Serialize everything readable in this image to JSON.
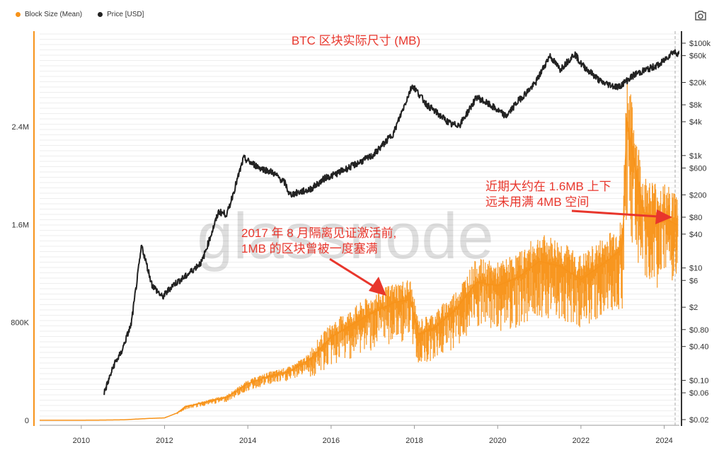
{
  "legend": [
    {
      "label": "Block Size (Mean)",
      "color": "#f7931a"
    },
    {
      "label": "Price [USD]",
      "color": "#222222"
    }
  ],
  "toolbar": {
    "screenshot_icon": "camera-icon"
  },
  "watermark": "glassnode",
  "chart_data": {
    "type": "line",
    "title": "BTC 区块实际尺寸 (MB)",
    "x_ticks": [
      "2010",
      "2012",
      "2014",
      "2016",
      "2018",
      "2020",
      "2022",
      "2024"
    ],
    "xlim": [
      "2009-01-03",
      "2024-05-01"
    ],
    "left_axis": {
      "ticks": [
        "0",
        "800K",
        "1.6M",
        "2.4M"
      ],
      "ylim": [
        0,
        2400000
      ]
    },
    "right_axis": {
      "scale": "log",
      "ticks": [
        "$0.02",
        "$0.06",
        "$0.10",
        "$0.40",
        "$0.80",
        "$2",
        "$6",
        "$10",
        "$40",
        "$80",
        "$200",
        "$600",
        "$1k",
        "$4k",
        "$8k",
        "$20k",
        "$60k",
        "$100k"
      ],
      "tick_values": [
        0.02,
        0.06,
        0.1,
        0.4,
        0.8,
        2,
        6,
        10,
        40,
        80,
        200,
        600,
        1000,
        4000,
        8000,
        20000,
        60000,
        100000
      ]
    },
    "series": [
      {
        "name": "Block Size (Mean)",
        "color": "#f7931a",
        "axis": "left",
        "points": [
          [
            2009.0,
            300
          ],
          [
            2010.0,
            500
          ],
          [
            2011.0,
            4000
          ],
          [
            2011.6,
            15000
          ],
          [
            2012.0,
            20000
          ],
          [
            2012.3,
            60000
          ],
          [
            2012.5,
            110000
          ],
          [
            2013.0,
            150000
          ],
          [
            2013.5,
            190000
          ],
          [
            2014.0,
            300000
          ],
          [
            2014.5,
            360000
          ],
          [
            2015.0,
            400000
          ],
          [
            2015.5,
            500000
          ],
          [
            2016.0,
            680000
          ],
          [
            2016.5,
            780000
          ],
          [
            2017.0,
            880000
          ],
          [
            2017.5,
            960000
          ],
          [
            2017.9,
            990000
          ],
          [
            2018.1,
            700000
          ],
          [
            2018.5,
            760000
          ],
          [
            2019.0,
            910000
          ],
          [
            2019.5,
            1130000
          ],
          [
            2020.0,
            1100000
          ],
          [
            2020.5,
            1170000
          ],
          [
            2021.0,
            1300000
          ],
          [
            2021.5,
            1260000
          ],
          [
            2022.0,
            1150000
          ],
          [
            2022.5,
            1270000
          ],
          [
            2023.0,
            1400000
          ],
          [
            2023.1,
            2450000
          ],
          [
            2023.5,
            1700000
          ],
          [
            2024.0,
            1650000
          ],
          [
            2024.3,
            1600000
          ]
        ]
      },
      {
        "name": "Price [USD]",
        "color": "#222222",
        "axis": "right",
        "points": [
          [
            2010.55,
            0.06
          ],
          [
            2010.8,
            0.2
          ],
          [
            2010.95,
            0.3
          ],
          [
            2011.2,
            1
          ],
          [
            2011.45,
            25
          ],
          [
            2011.7,
            5
          ],
          [
            2011.95,
            3
          ],
          [
            2012.2,
            5
          ],
          [
            2012.5,
            7
          ],
          [
            2012.9,
            13
          ],
          [
            2013.3,
            100
          ],
          [
            2013.5,
            90
          ],
          [
            2013.9,
            900
          ],
          [
            2014.0,
            800
          ],
          [
            2014.3,
            600
          ],
          [
            2014.6,
            500
          ],
          [
            2014.9,
            320
          ],
          [
            2015.0,
            200
          ],
          [
            2015.5,
            250
          ],
          [
            2015.9,
            420
          ],
          [
            2016.0,
            430
          ],
          [
            2016.5,
            650
          ],
          [
            2017.0,
            1000
          ],
          [
            2017.5,
            2500
          ],
          [
            2017.95,
            18000
          ],
          [
            2018.3,
            8000
          ],
          [
            2018.9,
            3500
          ],
          [
            2019.1,
            3600
          ],
          [
            2019.5,
            11000
          ],
          [
            2019.9,
            7200
          ],
          [
            2020.2,
            5000
          ],
          [
            2020.5,
            9500
          ],
          [
            2020.9,
            19000
          ],
          [
            2021.25,
            60000
          ],
          [
            2021.5,
            34000
          ],
          [
            2021.85,
            65000
          ],
          [
            2022.0,
            43000
          ],
          [
            2022.5,
            20000
          ],
          [
            2022.9,
            16500
          ],
          [
            2023.3,
            28000
          ],
          [
            2023.9,
            42000
          ],
          [
            2024.2,
            70000
          ],
          [
            2024.4,
            65000
          ]
        ]
      }
    ],
    "annotations": [
      {
        "lines": [
          "近期大约在 1.6MB 上下",
          "远未用满 4MB 空间"
        ]
      },
      {
        "lines": [
          "2017 年 8 月隔离见证激活前,",
          "1MB 的区块曾被一度塞满"
        ]
      }
    ]
  }
}
